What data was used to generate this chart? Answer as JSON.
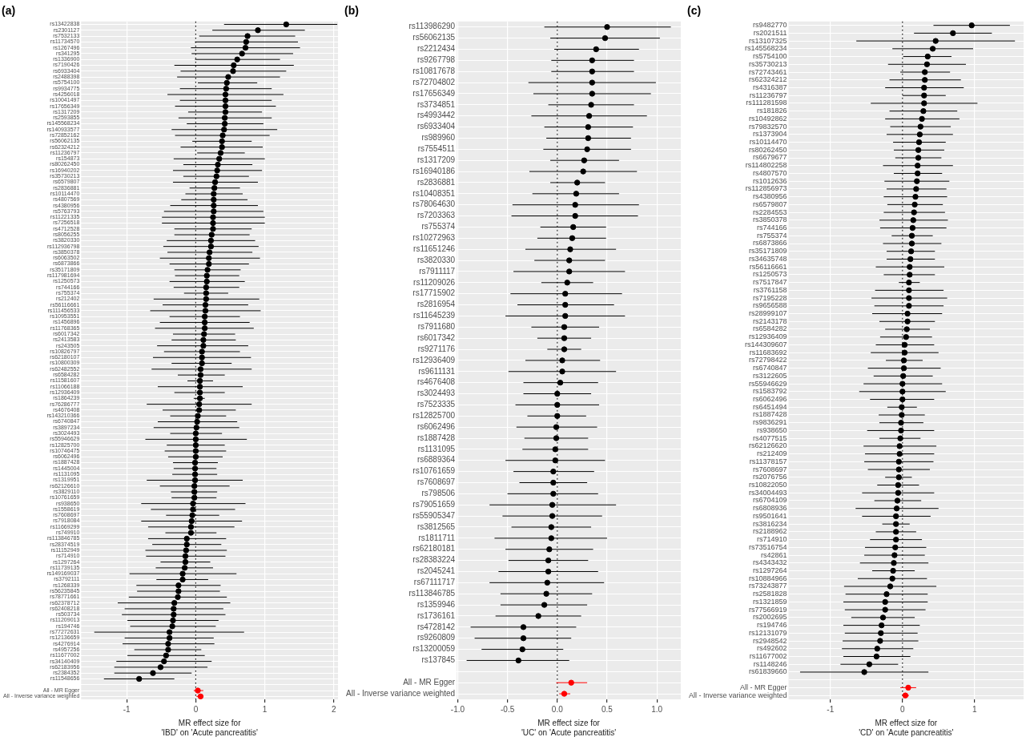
{
  "chart_data": [
    {
      "type": "scatter",
      "orientation": "horizontal",
      "title": "(a)",
      "xlabel": "MR effect size for\n'IBD' on 'Acute pancreatitis'",
      "marker": "circle",
      "grid": true,
      "xlim": [
        -1.66,
        2.06
      ],
      "xticks": [
        -1,
        0,
        1,
        2
      ],
      "ref_lines": [
        {
          "axis": "x",
          "value": 0,
          "line_style": "dotted",
          "color": "#333333"
        }
      ],
      "categories": [
        "rs13422838",
        "rs2301127",
        "rs7532133",
        "rs11734570",
        "rs1267496",
        "rs341295",
        "rs1336900",
        "rs7190426",
        "rs6933404",
        "rs2488398",
        "rs5754100",
        "rs9934775",
        "rs4256018",
        "rs10041497",
        "rs17656349",
        "rs1317209",
        "rs2593855",
        "rs145568234",
        "rs140933577",
        "rs72852162",
        "rs56062135",
        "rs62324212",
        "rs11236797",
        "rs154873",
        "rs80262450",
        "rs16940202",
        "rs35730213",
        "rs6579807",
        "rs2836881",
        "rs10114470",
        "rs4807569",
        "rs4380956",
        "rs5763793",
        "rs11221335",
        "rs7256518",
        "rs4712528",
        "rs8056255",
        "rs3820330",
        "rs112936798",
        "rs3850378",
        "rs6063502",
        "rs6873866",
        "rs35171809",
        "rs117981694",
        "rs1250573",
        "rs744166",
        "rs755374",
        "rs212402",
        "rs56116661",
        "rs111456533",
        "rs10953551",
        "rs1456896",
        "rs11768365",
        "rs6017342",
        "rs2413583",
        "rs243505",
        "rs10826797",
        "rs62180107",
        "rs10800309",
        "rs62482552",
        "rs6584282",
        "rs11581607",
        "rs11066188",
        "rs12936409",
        "rs1864239",
        "rs76286777",
        "rs4676408",
        "rs143210366",
        "rs6740847",
        "rs3897234",
        "rs3024493",
        "rs55946629",
        "rs12825700",
        "rs10746475",
        "rs6062496",
        "rs1887428",
        "rs1445004",
        "rs1131095",
        "rs1319951",
        "rs62126610",
        "rs3829110",
        "rs10761659",
        "rs938650",
        "rs1558619",
        "rs7608697",
        "rs7918084",
        "rs11669299",
        "rs749910",
        "rs113846785",
        "rs28374519",
        "rs11152949",
        "rs714910",
        "rs1297264",
        "rs11739135",
        "rs149169037",
        "rs3792111",
        "rs1268339",
        "rs56235845",
        "rs78771661",
        "rs62378712",
        "rs62408218",
        "rs503734",
        "rs11209013",
        "rs194746",
        "rs77272631",
        "rs12136659",
        "rs4276914",
        "rs4957256",
        "rs11677002",
        "rs34140409",
        "rs62183956",
        "rs2384352",
        "rs11548656",
        null,
        "All - MR Egger",
        "All - Inverse variance weighted"
      ],
      "values": [
        1.31,
        0.9,
        0.75,
        0.73,
        0.72,
        0.67,
        0.6,
        0.55,
        0.54,
        0.47,
        0.45,
        0.44,
        0.43,
        0.43,
        0.43,
        0.43,
        0.42,
        0.42,
        0.41,
        0.39,
        0.38,
        0.38,
        0.36,
        0.34,
        0.32,
        0.31,
        0.3,
        0.28,
        0.27,
        0.26,
        0.26,
        0.26,
        0.26,
        0.25,
        0.25,
        0.25,
        0.23,
        0.22,
        0.22,
        0.2,
        0.19,
        0.19,
        0.17,
        0.16,
        0.16,
        0.15,
        0.15,
        0.15,
        0.14,
        0.14,
        0.13,
        0.13,
        0.13,
        0.12,
        0.11,
        0.11,
        0.09,
        0.09,
        0.09,
        0.07,
        0.07,
        0.06,
        0.06,
        0.06,
        0.06,
        0.05,
        0.05,
        0.03,
        0.02,
        0.01,
        0.0,
        0.0,
        0.0,
        0.0,
        0.0,
        -0.01,
        -0.01,
        -0.01,
        -0.01,
        -0.02,
        -0.02,
        -0.02,
        -0.04,
        -0.04,
        -0.05,
        -0.06,
        -0.07,
        -0.07,
        -0.13,
        -0.13,
        -0.14,
        -0.15,
        -0.15,
        -0.16,
        -0.19,
        -0.19,
        -0.25,
        -0.25,
        -0.26,
        -0.31,
        -0.32,
        -0.32,
        -0.33,
        -0.34,
        -0.38,
        -0.38,
        -0.4,
        -0.4,
        -0.43,
        -0.46,
        -0.51,
        -0.62,
        -0.82,
        null,
        0.03,
        0.07
      ],
      "errors": [
        [
          0.41,
          2.05
        ],
        [
          0.24,
          1.58
        ],
        [
          0.05,
          1.44
        ],
        [
          -0.01,
          1.48
        ],
        [
          -0.07,
          1.51
        ],
        [
          -0.06,
          1.41
        ],
        [
          -0.01,
          1.22
        ],
        [
          -0.31,
          1.42
        ],
        [
          -0.22,
          1.31
        ],
        [
          -0.27,
          1.22
        ],
        [
          0.03,
          0.89
        ],
        [
          -0.23,
          1.1
        ],
        [
          -0.41,
          1.27
        ],
        [
          -0.23,
          1.1
        ],
        [
          -0.3,
          1.16
        ],
        [
          -0.11,
          0.96
        ],
        [
          -0.25,
          1.1
        ],
        [
          -0.13,
          0.98
        ],
        [
          -0.35,
          1.18
        ],
        [
          -0.3,
          1.07
        ],
        [
          -0.05,
          0.81
        ],
        [
          -0.22,
          0.97
        ],
        [
          0.02,
          0.71
        ],
        [
          -0.32,
          1.0
        ],
        [
          -0.18,
          0.82
        ],
        [
          -0.33,
          0.96
        ],
        [
          -0.18,
          0.77
        ],
        [
          -0.33,
          0.9
        ],
        [
          -0.09,
          0.64
        ],
        [
          -0.15,
          0.68
        ],
        [
          -0.21,
          0.75
        ],
        [
          -0.37,
          0.9
        ],
        [
          -0.46,
          0.98
        ],
        [
          -0.49,
          1.0
        ],
        [
          -0.49,
          1.0
        ],
        [
          -0.31,
          0.81
        ],
        [
          -0.31,
          0.78
        ],
        [
          -0.42,
          0.86
        ],
        [
          -0.47,
          0.91
        ],
        [
          -0.41,
          0.82
        ],
        [
          -0.52,
          0.93
        ],
        [
          -0.38,
          0.77
        ],
        [
          -0.31,
          0.65
        ],
        [
          -0.3,
          0.63
        ],
        [
          -0.38,
          0.71
        ],
        [
          -0.32,
          0.63
        ],
        [
          -0.17,
          0.47
        ],
        [
          -0.61,
          0.92
        ],
        [
          -0.48,
          0.76
        ],
        [
          -0.66,
          0.94
        ],
        [
          -0.38,
          0.64
        ],
        [
          -0.52,
          0.78
        ],
        [
          -0.59,
          0.84
        ],
        [
          -0.33,
          0.57
        ],
        [
          -0.35,
          0.58
        ],
        [
          -0.56,
          0.76
        ],
        [
          -0.46,
          0.64
        ],
        [
          -0.62,
          0.8
        ],
        [
          -0.35,
          0.52
        ],
        [
          -0.64,
          0.81
        ],
        [
          -0.26,
          0.42
        ],
        [
          -0.12,
          0.25
        ],
        [
          -0.55,
          0.68
        ],
        [
          -0.31,
          0.42
        ],
        [
          -0.03,
          0.13
        ],
        [
          -0.71,
          0.81
        ],
        [
          -0.48,
          0.58
        ],
        [
          -0.37,
          0.44
        ],
        [
          -0.55,
          0.6
        ],
        [
          -0.61,
          0.63
        ],
        [
          -0.37,
          0.38
        ],
        [
          -0.73,
          0.74
        ],
        [
          -0.42,
          0.42
        ],
        [
          -0.45,
          0.44
        ],
        [
          -0.4,
          0.39
        ],
        [
          -0.33,
          0.32
        ],
        [
          -0.32,
          0.3
        ],
        [
          -0.34,
          0.31
        ],
        [
          -0.71,
          0.68
        ],
        [
          -0.52,
          0.49
        ],
        [
          -0.36,
          0.31
        ],
        [
          -0.35,
          0.3
        ],
        [
          -0.79,
          0.72
        ],
        [
          -0.65,
          0.57
        ],
        [
          -0.43,
          0.34
        ],
        [
          -0.79,
          0.67
        ],
        [
          -0.69,
          0.56
        ],
        [
          -0.44,
          0.3
        ],
        [
          -0.69,
          0.44
        ],
        [
          -0.63,
          0.37
        ],
        [
          -0.73,
          0.45
        ],
        [
          -0.72,
          0.43
        ],
        [
          -0.51,
          0.21
        ],
        [
          -0.58,
          0.25
        ],
        [
          -0.96,
          0.59
        ],
        [
          -0.57,
          0.18
        ],
        [
          -0.86,
          0.36
        ],
        [
          -0.85,
          0.35
        ],
        [
          -0.97,
          0.45
        ],
        [
          -1.13,
          0.5
        ],
        [
          -1.03,
          0.4
        ],
        [
          -1.07,
          0.43
        ],
        [
          -0.99,
          0.33
        ],
        [
          -0.95,
          0.29
        ],
        [
          -1.47,
          0.7
        ],
        [
          -1.03,
          0.26
        ],
        [
          -1.06,
          0.27
        ],
        [
          -0.89,
          0.08
        ],
        [
          -0.99,
          0.13
        ],
        [
          -1.15,
          0.23
        ],
        [
          -1.18,
          0.17
        ],
        [
          -1.18,
          -0.06
        ],
        [
          -1.33,
          -0.31
        ],
        null,
        [
          -0.03,
          0.11
        ],
        [
          0.01,
          0.11
        ]
      ],
      "colors": [
        "#000000",
        "#000000",
        "#000000",
        "#000000",
        "#000000",
        "#000000",
        "#000000",
        "#000000",
        "#000000",
        "#000000",
        "#000000",
        "#000000",
        "#000000",
        "#000000",
        "#000000",
        "#000000",
        "#000000",
        "#000000",
        "#000000",
        "#000000",
        "#000000",
        "#000000",
        "#000000",
        "#000000",
        "#000000",
        "#000000",
        "#000000",
        "#000000",
        "#000000",
        "#000000",
        "#000000",
        "#000000",
        "#000000",
        "#000000",
        "#000000",
        "#000000",
        "#000000",
        "#000000",
        "#000000",
        "#000000",
        "#000000",
        "#000000",
        "#000000",
        "#000000",
        "#000000",
        "#000000",
        "#000000",
        "#000000",
        "#000000",
        "#000000",
        "#000000",
        "#000000",
        "#000000",
        "#000000",
        "#000000",
        "#000000",
        "#000000",
        "#000000",
        "#000000",
        "#000000",
        "#000000",
        "#000000",
        "#000000",
        "#000000",
        "#000000",
        "#000000",
        "#000000",
        "#000000",
        "#000000",
        "#000000",
        "#000000",
        "#000000",
        "#000000",
        "#000000",
        "#000000",
        "#000000",
        "#000000",
        "#000000",
        "#000000",
        "#000000",
        "#000000",
        "#000000",
        "#000000",
        "#000000",
        "#000000",
        "#000000",
        "#000000",
        "#000000",
        "#000000",
        "#000000",
        "#000000",
        "#000000",
        "#000000",
        "#000000",
        "#000000",
        "#000000",
        "#000000",
        "#000000",
        "#000000",
        "#000000",
        "#000000",
        "#000000",
        "#000000",
        "#000000",
        "#000000",
        "#000000",
        "#000000",
        "#000000",
        "#000000",
        "#000000",
        "#000000",
        "#000000",
        "#000000",
        null,
        "#ff0000",
        "#ff0000"
      ]
    },
    {
      "type": "scatter",
      "orientation": "horizontal",
      "title": "(b)",
      "xlabel": "MR effect size for\n'UC' on 'Acute pancreatitis'",
      "marker": "circle",
      "grid": true,
      "xlim": [
        -1.01,
        1.24
      ],
      "xticks": [
        {
          "value": -1,
          "label": "-1.0"
        },
        {
          "value": -0.5,
          "label": "-0.5"
        },
        {
          "value": 0,
          "label": "0.0"
        },
        {
          "value": 0.5,
          "label": "0.5"
        },
        {
          "value": 1,
          "label": "1.0"
        }
      ],
      "ref_lines": [
        {
          "axis": "x",
          "value": 0,
          "line_style": "dotted",
          "color": "#333333"
        }
      ],
      "categories": [
        "rs113986290",
        "rs56062135",
        "rs2212434",
        "rs9267798",
        "rs10817678",
        "rs72704802",
        "rs17656349",
        "rs3734851",
        "rs4993442",
        "rs6933404",
        "rs989960",
        "rs7554511",
        "rs1317209",
        "rs16940186",
        "rs2836881",
        "rs10408351",
        "rs78064630",
        "rs7203363",
        "rs755374",
        "rs10272963",
        "rs11651246",
        "rs3820330",
        "rs7911117",
        "rs11209026",
        "rs17715902",
        "rs2816954",
        "rs11645239",
        "rs7911680",
        "rs6017342",
        "rs9271176",
        "rs12936409",
        "rs9611131",
        "rs4676408",
        "rs3024493",
        "rs7523335",
        "rs12825700",
        "rs6062496",
        "rs1887428",
        "rs1131095",
        "rs6889364",
        "rs10761659",
        "rs7608697",
        "rs798506",
        "rs79051659",
        "rs55905347",
        "rs3812565",
        "rs1811711",
        "rs62180181",
        "rs28383224",
        "rs2045241",
        "rs67111717",
        "rs113846785",
        "rs1359946",
        "rs1736161",
        "rs4728142",
        "rs9260809",
        "rs13200059",
        "rs137845",
        null,
        "All - MR Egger",
        "All - Inverse variance weighted"
      ],
      "values": [
        0.5,
        0.48,
        0.39,
        0.35,
        0.35,
        0.35,
        0.35,
        0.34,
        0.32,
        0.31,
        0.31,
        0.3,
        0.27,
        0.26,
        0.2,
        0.19,
        0.18,
        0.18,
        0.16,
        0.15,
        0.13,
        0.12,
        0.12,
        0.1,
        0.08,
        0.08,
        0.08,
        0.07,
        0.07,
        0.07,
        0.05,
        0.05,
        0.03,
        0.0,
        0.0,
        0.0,
        -0.01,
        -0.01,
        -0.02,
        -0.02,
        -0.04,
        -0.04,
        -0.04,
        -0.05,
        -0.05,
        -0.06,
        -0.06,
        -0.08,
        -0.09,
        -0.09,
        -0.1,
        -0.11,
        -0.13,
        -0.19,
        -0.34,
        -0.34,
        -0.35,
        -0.39,
        null,
        0.14,
        0.07
      ],
      "errors": [
        [
          -0.13,
          1.14
        ],
        [
          -0.07,
          1.03
        ],
        [
          -0.03,
          0.82
        ],
        [
          -0.06,
          0.77
        ],
        [
          -0.06,
          0.77
        ],
        [
          -0.29,
          0.99
        ],
        [
          -0.24,
          0.94
        ],
        [
          -0.09,
          0.77
        ],
        [
          -0.26,
          0.9
        ],
        [
          -0.13,
          0.76
        ],
        [
          -0.11,
          0.74
        ],
        [
          -0.14,
          0.74
        ],
        [
          -0.07,
          0.62
        ],
        [
          -0.28,
          0.8
        ],
        [
          -0.07,
          0.48
        ],
        [
          -0.25,
          0.62
        ],
        [
          -0.45,
          0.82
        ],
        [
          -0.46,
          0.81
        ],
        [
          -0.17,
          0.49
        ],
        [
          -0.2,
          0.49
        ],
        [
          -0.32,
          0.59
        ],
        [
          -0.23,
          0.48
        ],
        [
          -0.44,
          0.68
        ],
        [
          -0.16,
          0.36
        ],
        [
          -0.47,
          0.65
        ],
        [
          -0.4,
          0.57
        ],
        [
          -0.52,
          0.68
        ],
        [
          -0.26,
          0.42
        ],
        [
          -0.2,
          0.34
        ],
        [
          -0.1,
          0.24
        ],
        [
          -0.32,
          0.43
        ],
        [
          -0.49,
          0.59
        ],
        [
          -0.34,
          0.41
        ],
        [
          -0.34,
          0.34
        ],
        [
          -0.42,
          0.42
        ],
        [
          -0.3,
          0.29
        ],
        [
          -0.41,
          0.4
        ],
        [
          -0.33,
          0.31
        ],
        [
          -0.35,
          0.31
        ],
        [
          -0.52,
          0.48
        ],
        [
          -0.44,
          0.37
        ],
        [
          -0.38,
          0.3
        ],
        [
          -0.5,
          0.41
        ],
        [
          -0.68,
          0.59
        ],
        [
          -0.55,
          0.45
        ],
        [
          -0.46,
          0.34
        ],
        [
          -0.63,
          0.5
        ],
        [
          -0.52,
          0.36
        ],
        [
          -0.49,
          0.31
        ],
        [
          -0.59,
          0.41
        ],
        [
          -0.68,
          0.47
        ],
        [
          -0.57,
          0.35
        ],
        [
          -0.57,
          0.3
        ],
        [
          -0.62,
          0.24
        ],
        [
          -0.87,
          0.19
        ],
        [
          -0.83,
          0.14
        ],
        [
          -0.76,
          0.06
        ],
        [
          -0.91,
          0.12
        ],
        null,
        [
          -0.01,
          0.3
        ],
        [
          0.02,
          0.13
        ]
      ],
      "colors": [
        "#000000",
        "#000000",
        "#000000",
        "#000000",
        "#000000",
        "#000000",
        "#000000",
        "#000000",
        "#000000",
        "#000000",
        "#000000",
        "#000000",
        "#000000",
        "#000000",
        "#000000",
        "#000000",
        "#000000",
        "#000000",
        "#000000",
        "#000000",
        "#000000",
        "#000000",
        "#000000",
        "#000000",
        "#000000",
        "#000000",
        "#000000",
        "#000000",
        "#000000",
        "#000000",
        "#000000",
        "#000000",
        "#000000",
        "#000000",
        "#000000",
        "#000000",
        "#000000",
        "#000000",
        "#000000",
        "#000000",
        "#000000",
        "#000000",
        "#000000",
        "#000000",
        "#000000",
        "#000000",
        "#000000",
        "#000000",
        "#000000",
        "#000000",
        "#000000",
        "#000000",
        "#000000",
        "#000000",
        "#000000",
        "#000000",
        "#000000",
        "#000000",
        null,
        "#ff0000",
        "#ff0000"
      ]
    },
    {
      "type": "scatter",
      "orientation": "horizontal",
      "title": "(c)",
      "xlabel": "MR effect size for\n'CD' on 'Acute pancreatitis'",
      "marker": "circle",
      "grid": true,
      "xlim": [
        -1.58,
        1.68
      ],
      "xticks": [
        -1,
        0,
        1
      ],
      "ref_lines": [
        {
          "axis": "x",
          "value": 0,
          "line_style": "dotted",
          "color": "#333333"
        }
      ],
      "categories": [
        "rs9482770",
        "rs2021511",
        "rs13107325",
        "rs145568234",
        "rs5754100",
        "rs35730213",
        "rs72743461",
        "rs62324212",
        "rs4316387",
        "rs11236797",
        "rs111281598",
        "rs181826",
        "rs10492862",
        "rs79832570",
        "rs1373904",
        "rs10114470",
        "rs80262450",
        "rs6679677",
        "rs114802258",
        "rs4807570",
        "rs1012636",
        "rs112856973",
        "rs4380956",
        "rs6579807",
        "rs2284553",
        "rs3850378",
        "rs744166",
        "rs755374",
        "rs6873866",
        "rs35171809",
        "rs34635748",
        "rs56116661",
        "rs1250573",
        "rs7517847",
        "rs3761158",
        "rs7195228",
        "rs9656588",
        "rs28999107",
        "rs2143178",
        "rs6584282",
        "rs12936409",
        "rs144309607",
        "rs11683692",
        "rs72798422",
        "rs6740847",
        "rs3122605",
        "rs55946629",
        "rs1583792",
        "rs6062496",
        "rs6451494",
        "rs1887428",
        "rs9836291",
        "rs938650",
        "rs4077515",
        "rs62126620",
        "rs212409",
        "rs11378157",
        "rs7608697",
        "rs2076756",
        "rs10822050",
        "rs34004493",
        "rs6704109",
        "rs6808936",
        "rs9501641",
        "rs3816234",
        "rs2188962",
        "rs714910",
        "rs73516754",
        "rs42861",
        "rs4343432",
        "rs1297264",
        "rs10884966",
        "rs73243877",
        "rs2581828",
        "rs1321859",
        "rs77566919",
        "rs2002695",
        "rs194746",
        "rs12131079",
        "rs2948542",
        "rs492602",
        "rs11677002",
        "rs1148246",
        "rs61839660",
        null,
        "All - MR Egger",
        "All - Inverse variance weighted"
      ],
      "values": [
        0.96,
        0.7,
        0.46,
        0.42,
        0.35,
        0.34,
        0.31,
        0.31,
        0.3,
        0.3,
        0.3,
        0.29,
        0.27,
        0.25,
        0.24,
        0.23,
        0.22,
        0.22,
        0.21,
        0.21,
        0.2,
        0.19,
        0.18,
        0.17,
        0.16,
        0.15,
        0.14,
        0.13,
        0.13,
        0.12,
        0.11,
        0.1,
        0.1,
        0.09,
        0.09,
        0.09,
        0.09,
        0.07,
        0.07,
        0.06,
        0.05,
        0.03,
        0.03,
        0.02,
        0.02,
        0.01,
        0.0,
        0.0,
        0.0,
        -0.01,
        -0.01,
        -0.02,
        -0.02,
        -0.03,
        -0.04,
        -0.04,
        -0.05,
        -0.05,
        -0.05,
        -0.06,
        -0.06,
        -0.07,
        -0.08,
        -0.09,
        -0.09,
        -0.09,
        -0.09,
        -0.1,
        -0.11,
        -0.12,
        -0.13,
        -0.14,
        -0.17,
        -0.22,
        -0.24,
        -0.24,
        -0.27,
        -0.29,
        -0.3,
        -0.31,
        -0.35,
        -0.36,
        -0.46,
        -0.53,
        null,
        0.08,
        0.04
      ],
      "errors": [
        [
          0.43,
          1.49
        ],
        [
          0.16,
          1.24
        ],
        [
          -0.64,
          1.56
        ],
        [
          -0.14,
          0.98
        ],
        [
          0.01,
          0.68
        ],
        [
          -0.2,
          0.88
        ],
        [
          -0.03,
          0.66
        ],
        [
          -0.18,
          0.81
        ],
        [
          -0.24,
          0.85
        ],
        [
          0.0,
          0.6
        ],
        [
          -0.44,
          1.04
        ],
        [
          -0.18,
          0.76
        ],
        [
          -0.24,
          0.79
        ],
        [
          -0.17,
          0.67
        ],
        [
          -0.22,
          0.7
        ],
        [
          -0.13,
          0.6
        ],
        [
          -0.12,
          0.58
        ],
        [
          -0.1,
          0.54
        ],
        [
          -0.27,
          0.7
        ],
        [
          -0.12,
          0.55
        ],
        [
          -0.25,
          0.65
        ],
        [
          -0.22,
          0.61
        ],
        [
          -0.26,
          0.62
        ],
        [
          -0.21,
          0.56
        ],
        [
          -0.26,
          0.59
        ],
        [
          -0.32,
          0.63
        ],
        [
          -0.31,
          0.61
        ],
        [
          -0.15,
          0.42
        ],
        [
          -0.27,
          0.54
        ],
        [
          -0.22,
          0.45
        ],
        [
          -0.22,
          0.45
        ],
        [
          -0.37,
          0.58
        ],
        [
          -0.26,
          0.45
        ],
        [
          -0.05,
          0.24
        ],
        [
          -0.38,
          0.57
        ],
        [
          -0.43,
          0.62
        ],
        [
          -0.39,
          0.57
        ],
        [
          -0.42,
          0.55
        ],
        [
          -0.32,
          0.45
        ],
        [
          -0.24,
          0.38
        ],
        [
          -0.31,
          0.41
        ],
        [
          -0.37,
          0.44
        ],
        [
          -0.44,
          0.5
        ],
        [
          -0.23,
          0.28
        ],
        [
          -0.48,
          0.53
        ],
        [
          -0.4,
          0.42
        ],
        [
          -0.54,
          0.55
        ],
        [
          -0.6,
          0.6
        ],
        [
          -0.45,
          0.44
        ],
        [
          -0.21,
          0.2
        ],
        [
          -0.33,
          0.31
        ],
        [
          -0.32,
          0.29
        ],
        [
          -0.49,
          0.44
        ],
        [
          -0.32,
          0.25
        ],
        [
          -0.54,
          0.47
        ],
        [
          -0.52,
          0.44
        ],
        [
          -0.53,
          0.43
        ],
        [
          -0.48,
          0.38
        ],
        [
          -0.24,
          0.13
        ],
        [
          -0.35,
          0.23
        ],
        [
          -0.56,
          0.44
        ],
        [
          -0.39,
          0.26
        ],
        [
          -0.65,
          0.5
        ],
        [
          -0.56,
          0.39
        ],
        [
          -0.28,
          0.1
        ],
        [
          -0.37,
          0.19
        ],
        [
          -0.45,
          0.27
        ],
        [
          -0.52,
          0.33
        ],
        [
          -0.53,
          0.31
        ],
        [
          -0.59,
          0.36
        ],
        [
          -0.42,
          0.17
        ],
        [
          -0.62,
          0.34
        ],
        [
          -0.81,
          0.47
        ],
        [
          -0.79,
          0.35
        ],
        [
          -0.82,
          0.35
        ],
        [
          -0.8,
          0.32
        ],
        [
          -0.71,
          0.17
        ],
        [
          -0.82,
          0.24
        ],
        [
          -0.8,
          0.21
        ],
        [
          -0.83,
          0.22
        ],
        [
          -0.84,
          0.15
        ],
        [
          -0.82,
          0.11
        ],
        [
          -0.86,
          -0.06
        ],
        [
          -1.42,
          0.36
        ],
        null,
        [
          -0.03,
          0.19
        ],
        [
          0.0,
          0.09
        ]
      ],
      "colors": [
        "#000000",
        "#000000",
        "#000000",
        "#000000",
        "#000000",
        "#000000",
        "#000000",
        "#000000",
        "#000000",
        "#000000",
        "#000000",
        "#000000",
        "#000000",
        "#000000",
        "#000000",
        "#000000",
        "#000000",
        "#000000",
        "#000000",
        "#000000",
        "#000000",
        "#000000",
        "#000000",
        "#000000",
        "#000000",
        "#000000",
        "#000000",
        "#000000",
        "#000000",
        "#000000",
        "#000000",
        "#000000",
        "#000000",
        "#000000",
        "#000000",
        "#000000",
        "#000000",
        "#000000",
        "#000000",
        "#000000",
        "#000000",
        "#000000",
        "#000000",
        "#000000",
        "#000000",
        "#000000",
        "#000000",
        "#000000",
        "#000000",
        "#000000",
        "#000000",
        "#000000",
        "#000000",
        "#000000",
        "#000000",
        "#000000",
        "#000000",
        "#000000",
        "#000000",
        "#000000",
        "#000000",
        "#000000",
        "#000000",
        "#000000",
        "#000000",
        "#000000",
        "#000000",
        "#000000",
        "#000000",
        "#000000",
        "#000000",
        "#000000",
        "#000000",
        "#000000",
        "#000000",
        "#000000",
        "#000000",
        "#000000",
        "#000000",
        "#000000",
        "#000000",
        "#000000",
        "#000000",
        "#000000",
        null,
        "#ff0000",
        "#ff0000"
      ]
    }
  ]
}
